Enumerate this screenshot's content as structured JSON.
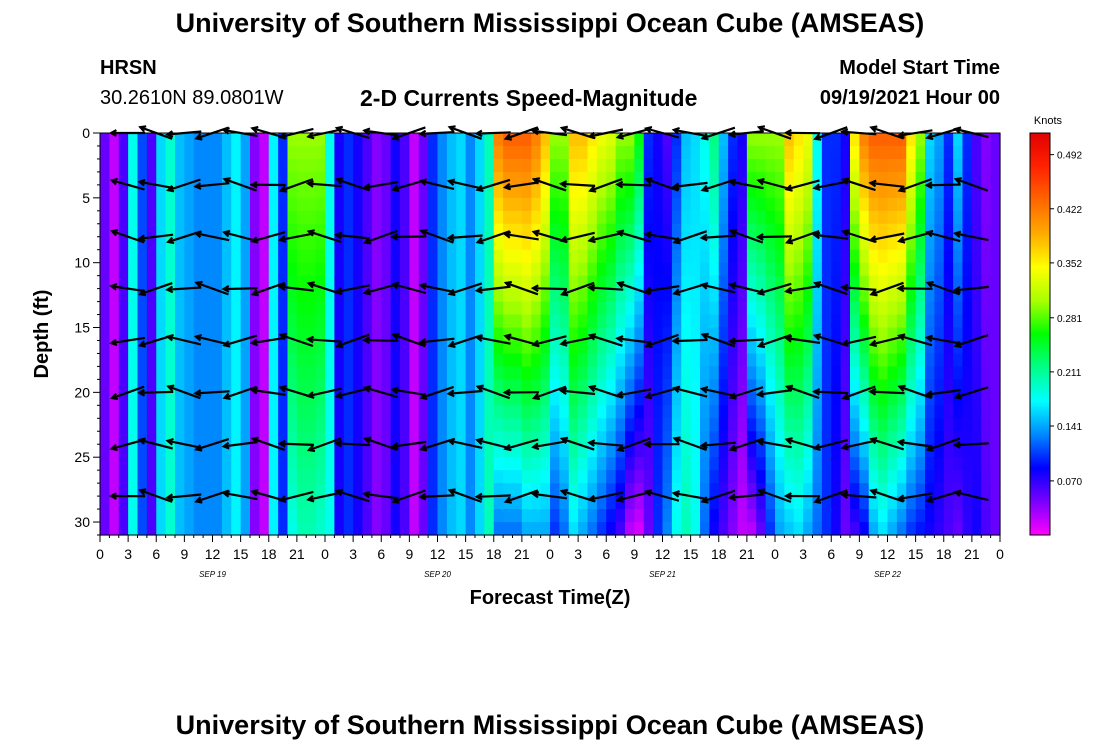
{
  "header": {
    "top_title": "University of Southern Mississippi Ocean Cube (AMSEAS)",
    "bottom_title": "University of Southern Mississippi Ocean Cube (AMSEAS)",
    "station": "HRSN",
    "coords": "30.2610N  89.0801W",
    "plot_title": "2-D Currents Speed-Magnitude",
    "model_start_label": "Model Start Time",
    "model_start_value": "09/19/2021 Hour 00"
  },
  "chart_data": {
    "type": "heatmap",
    "title": "2-D Currents Speed-Magnitude",
    "xlabel": "Forecast Time(Z)",
    "ylabel": "Depth (ft)",
    "ylim": [
      0,
      31
    ],
    "xlim_hours": [
      0,
      96
    ],
    "x_tick_labels": [
      "0",
      "3",
      "6",
      "9",
      "12",
      "15",
      "18",
      "21",
      "0",
      "3",
      "6",
      "9",
      "12",
      "15",
      "18",
      "21",
      "0",
      "3",
      "6",
      "9",
      "12",
      "15",
      "18",
      "21",
      "0",
      "3",
      "6",
      "9",
      "12",
      "15",
      "18",
      "21",
      "0"
    ],
    "y_ticks": [
      0,
      5,
      10,
      15,
      20,
      25,
      30
    ],
    "date_labels": [
      {
        "label": "SEP 19",
        "hour": 12
      },
      {
        "label": "SEP 20",
        "hour": 36
      },
      {
        "label": "SEP 21",
        "hour": 60
      },
      {
        "label": "SEP 22",
        "hour": 84
      }
    ],
    "colorbar": {
      "unit": "Knots",
      "tick_labels": [
        "0.492",
        "0.422",
        "0.352",
        "0.281",
        "0.211",
        "0.141",
        "0.070"
      ],
      "range": [
        0.0,
        0.52
      ],
      "colors": [
        "#ff00ff",
        "#7a00ff",
        "#0000ff",
        "#0088ff",
        "#00ffff",
        "#00ff88",
        "#00ff00",
        "#aaff00",
        "#ffff00",
        "#ffaa00",
        "#ff6600",
        "#ff2200",
        "#e00000"
      ]
    },
    "speed_profile": {
      "hours": [
        0,
        1,
        2,
        3,
        4,
        5,
        6,
        7,
        8,
        9,
        10,
        11,
        12,
        13,
        14,
        15,
        16,
        17,
        18,
        19,
        20,
        21,
        22,
        23,
        24,
        25,
        26,
        27,
        28,
        29,
        30,
        31,
        32,
        33,
        34,
        35,
        36,
        37,
        38,
        39,
        40,
        41,
        42,
        43,
        44,
        45,
        46,
        47,
        48,
        49,
        50,
        51,
        52,
        53,
        54,
        55,
        56,
        57,
        58,
        59,
        60,
        61,
        62,
        63,
        64,
        65,
        66,
        67,
        68,
        69,
        70,
        71,
        72,
        73,
        74,
        75,
        76,
        77,
        78,
        79,
        80,
        81,
        82,
        83,
        84,
        85,
        86,
        87,
        88,
        89,
        90,
        91,
        92,
        93,
        94,
        95,
        96
      ],
      "surface_knots": [
        0.05,
        0.02,
        0.06,
        0.18,
        0.11,
        0.06,
        0.16,
        0.19,
        0.15,
        0.14,
        0.13,
        0.13,
        0.13,
        0.15,
        0.17,
        0.14,
        0.04,
        0.02,
        0.17,
        0.1,
        0.3,
        0.3,
        0.3,
        0.3,
        0.18,
        0.08,
        0.1,
        0.08,
        0.06,
        0.04,
        0.05,
        0.08,
        0.06,
        0.02,
        0.05,
        0.1,
        0.13,
        0.15,
        0.16,
        0.13,
        0.16,
        0.2,
        0.42,
        0.44,
        0.44,
        0.44,
        0.42,
        0.38,
        0.3,
        0.3,
        0.38,
        0.38,
        0.36,
        0.34,
        0.33,
        0.3,
        0.3,
        0.26,
        0.1,
        0.08,
        0.06,
        0.1,
        0.15,
        0.16,
        0.18,
        0.22,
        0.15,
        0.1,
        0.08,
        0.3,
        0.3,
        0.3,
        0.3,
        0.38,
        0.36,
        0.34,
        0.18,
        0.1,
        0.1,
        0.08,
        0.36,
        0.42,
        0.44,
        0.44,
        0.44,
        0.44,
        0.36,
        0.3,
        0.16,
        0.14,
        0.1,
        0.16,
        0.1,
        0.06,
        0.04,
        0.05,
        0.1
      ],
      "bottom_knots": [
        0.05,
        0.02,
        0.06,
        0.18,
        0.11,
        0.06,
        0.16,
        0.19,
        0.15,
        0.14,
        0.13,
        0.13,
        0.13,
        0.15,
        0.17,
        0.14,
        0.04,
        0.02,
        0.17,
        0.1,
        0.18,
        0.2,
        0.2,
        0.19,
        0.18,
        0.08,
        0.1,
        0.08,
        0.06,
        0.04,
        0.05,
        0.08,
        0.06,
        0.02,
        0.05,
        0.1,
        0.13,
        0.15,
        0.16,
        0.13,
        0.16,
        0.2,
        0.12,
        0.12,
        0.12,
        0.14,
        0.14,
        0.14,
        0.1,
        0.12,
        0.16,
        0.14,
        0.12,
        0.1,
        0.08,
        0.06,
        0.02,
        0.01,
        0.05,
        0.1,
        0.13,
        0.18,
        0.2,
        0.18,
        0.12,
        0.08,
        0.06,
        0.04,
        0.02,
        0.02,
        0.05,
        0.1,
        0.14,
        0.15,
        0.16,
        0.14,
        0.12,
        0.1,
        0.08,
        0.05,
        0.06,
        0.08,
        0.14,
        0.16,
        0.14,
        0.12,
        0.1,
        0.09,
        0.08,
        0.07,
        0.06,
        0.05,
        0.07,
        0.08,
        0.06,
        0.05,
        0.1
      ]
    },
    "vectors": {
      "depths_ft": [
        0,
        4,
        8,
        12,
        16,
        20,
        24,
        28
      ],
      "hours": [
        3,
        6,
        9,
        12,
        15,
        18,
        21,
        24,
        27,
        30,
        33,
        36,
        39,
        42,
        45,
        48,
        51,
        54,
        57,
        60,
        63,
        66,
        69,
        72,
        75,
        78,
        81,
        84,
        87,
        90,
        93
      ],
      "direction_note": "Arrows point mostly toward the west (left) at most times and depths."
    }
  }
}
